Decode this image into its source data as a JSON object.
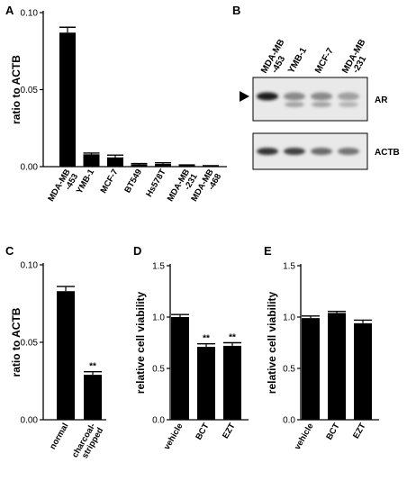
{
  "panel_labels": [
    "A",
    "B",
    "C",
    "D",
    "E"
  ],
  "chart_data": [
    {
      "panel": "A",
      "type": "bar",
      "ylabel": "ratio to ACTB",
      "categories": [
        "MDA-MB\n-453",
        "YMB-1",
        "MCF-7",
        "BT549",
        "Hs578T",
        "MDA-MB\n-231",
        "MDA-MB\n-468"
      ],
      "values": [
        0.087,
        0.008,
        0.006,
        0.0015,
        0.0018,
        0.0008,
        0.0004
      ],
      "errors": [
        0.0035,
        0.0008,
        0.0015,
        0.0005,
        0.0007,
        0.0003,
        0.0002
      ],
      "yticks": [
        0.0,
        0.05,
        0.1
      ],
      "ytick_labels": [
        "0.00",
        "0.05",
        "0.10"
      ],
      "ylim": [
        0,
        0.1
      ],
      "significance": [
        "",
        "",
        "",
        "",
        "",
        "",
        ""
      ]
    },
    {
      "panel": "C",
      "type": "bar",
      "ylabel": "ratio to ACTB",
      "categories": [
        "normal",
        "charcoal-\nstripped"
      ],
      "values": [
        0.083,
        0.029
      ],
      "errors": [
        0.003,
        0.002
      ],
      "yticks": [
        0.0,
        0.05,
        0.1
      ],
      "ytick_labels": [
        "0.00",
        "0.05",
        "0.10"
      ],
      "ylim": [
        0,
        0.1
      ],
      "significance": [
        "",
        "**"
      ]
    },
    {
      "panel": "D",
      "type": "bar",
      "ylabel": "relative cell viability",
      "categories": [
        "vehicle",
        "BCT",
        "EZT"
      ],
      "values": [
        1.0,
        0.71,
        0.72
      ],
      "errors": [
        0.025,
        0.03,
        0.03
      ],
      "yticks": [
        0.0,
        0.5,
        1.0,
        1.5
      ],
      "ytick_labels": [
        "0.0",
        "0.5",
        "1.0",
        "1.5"
      ],
      "ylim": [
        0,
        1.5
      ],
      "significance": [
        "",
        "**",
        "**"
      ]
    },
    {
      "panel": "E",
      "type": "bar",
      "ylabel": "relative cell viability",
      "categories": [
        "vehicle",
        "BCT",
        "EZT"
      ],
      "values": [
        0.99,
        1.04,
        0.94
      ],
      "errors": [
        0.02,
        0.015,
        0.03
      ],
      "yticks": [
        0.0,
        0.5,
        1.0,
        1.5
      ],
      "ytick_labels": [
        "0.0",
        "0.5",
        "1.0",
        "1.5"
      ],
      "ylim": [
        0,
        1.5
      ],
      "significance": [
        "",
        "",
        ""
      ]
    }
  ],
  "blot": {
    "lanes": [
      "MDA-MB\n-453",
      "YMB-1",
      "MCF-7",
      "MDA-MB\n-231"
    ],
    "bands": [
      {
        "label": "AR",
        "intensities": [
          0.95,
          0.45,
          0.45,
          0.35
        ]
      },
      {
        "label": "ACTB",
        "intensities": [
          0.85,
          0.8,
          0.6,
          0.55
        ]
      }
    ]
  }
}
